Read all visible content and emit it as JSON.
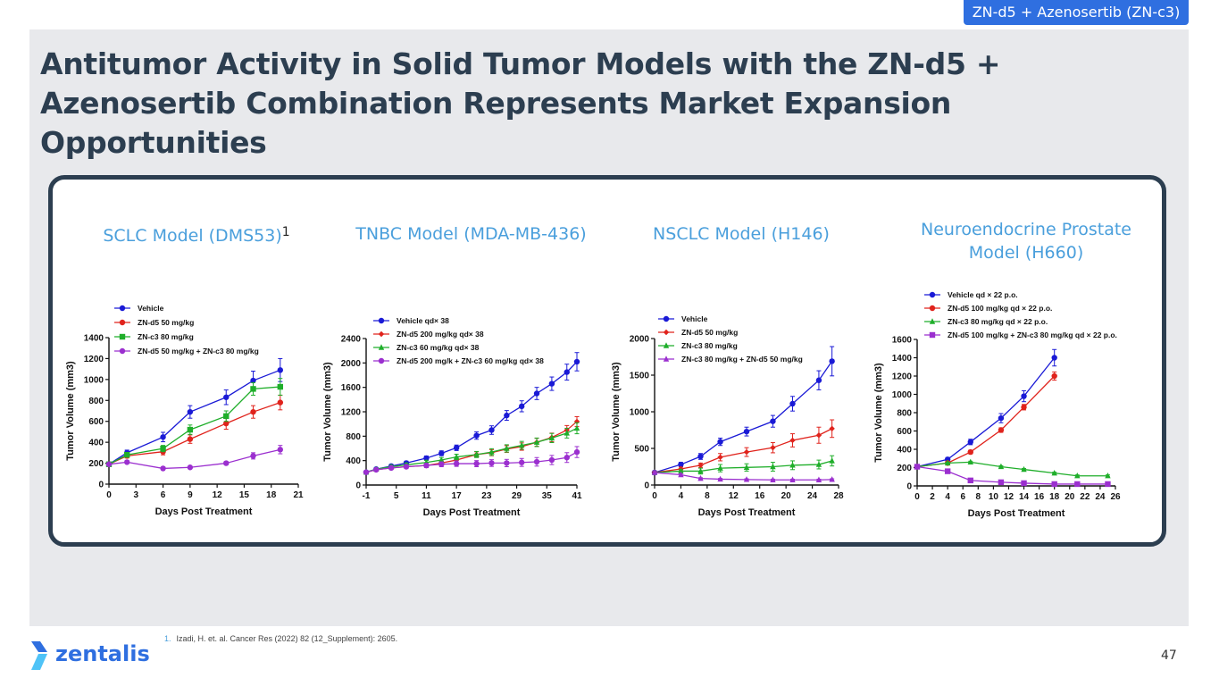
{
  "header_tag": "ZN-d5 + Azenosertib (ZN-c3)",
  "title": "Antitumor Activity in Solid Tumor Models with the ZN-d5 + Azenosertib Combination Represents Market Expansion Opportunities",
  "footnote": {
    "number": "1.",
    "text": "Izadi, H. et. al. Cancer Res (2022) 82 (12_Supplement): 2605."
  },
  "brand": "zentalis",
  "page_number": "47",
  "colors": {
    "blue": "#1a1ad6",
    "red": "#e0231c",
    "green": "#1fae2a",
    "purple": "#9b2fcf",
    "accent": "#4a9fdc",
    "dark": "#2c3e50"
  },
  "chart_data": [
    {
      "type": "line",
      "title": "SCLC Model (DMS53)",
      "title_superscript": "1",
      "xlabel": "Days Post Treatment",
      "ylabel": "Tumor Volume (mm3)",
      "xlim": [
        0,
        21
      ],
      "ylim": [
        0,
        1400
      ],
      "xticks": [
        0,
        3,
        6,
        9,
        12,
        15,
        18,
        21
      ],
      "yticks": [
        0,
        200,
        400,
        600,
        800,
        1000,
        1200,
        1400
      ],
      "legend_position": "top-left",
      "series": [
        {
          "name": "Vehicle",
          "color": "#1a1ad6",
          "marker": "circle",
          "x": [
            0,
            2,
            6,
            9,
            13,
            16,
            19
          ],
          "y": [
            190,
            300,
            450,
            690,
            830,
            990,
            1090
          ],
          "err": [
            20,
            25,
            45,
            60,
            70,
            90,
            110
          ]
        },
        {
          "name": "ZN-d5 50 mg/kg",
          "color": "#e0231c",
          "marker": "circle",
          "x": [
            0,
            2,
            6,
            9,
            13,
            16,
            19
          ],
          "y": [
            190,
            270,
            310,
            430,
            580,
            690,
            780
          ],
          "err": [
            15,
            20,
            30,
            40,
            55,
            60,
            70
          ]
        },
        {
          "name": "ZN-c3 80 mg/kg",
          "color": "#1fae2a",
          "marker": "square",
          "x": [
            0,
            2,
            6,
            9,
            13,
            16,
            19
          ],
          "y": [
            190,
            280,
            340,
            520,
            650,
            910,
            930
          ],
          "err": [
            15,
            20,
            30,
            45,
            50,
            60,
            80
          ]
        },
        {
          "name": "ZN-d5 50 mg/kg + ZN-c3 80 mg/kg",
          "color": "#9b2fcf",
          "marker": "circle",
          "x": [
            0,
            2,
            6,
            9,
            13,
            16,
            19
          ],
          "y": [
            190,
            210,
            150,
            160,
            200,
            270,
            330
          ],
          "err": [
            10,
            10,
            10,
            10,
            15,
            30,
            40
          ]
        }
      ]
    },
    {
      "type": "line",
      "title": "TNBC Model (MDA-MB-436)",
      "xlabel": "Days Post Treatment",
      "ylabel": "Tumor Volume (mm3)",
      "xlim": [
        -1,
        41
      ],
      "ylim": [
        0,
        2400
      ],
      "xticks": [
        -1,
        5,
        11,
        17,
        23,
        29,
        35,
        41
      ],
      "yticks": [
        0,
        400,
        800,
        1200,
        1600,
        2000,
        2400
      ],
      "legend_position": "top-left",
      "series": [
        {
          "name": "Vehicle qd× 38",
          "color": "#1a1ad6",
          "marker": "circle",
          "x": [
            -1,
            1,
            4,
            7,
            11,
            14,
            17,
            21,
            24,
            27,
            30,
            33,
            36,
            39,
            41
          ],
          "y": [
            210,
            260,
            310,
            360,
            440,
            520,
            610,
            810,
            900,
            1140,
            1290,
            1500,
            1660,
            1850,
            2020
          ],
          "err": [
            20,
            20,
            25,
            30,
            35,
            40,
            45,
            60,
            70,
            80,
            90,
            100,
            110,
            130,
            150
          ]
        },
        {
          "name": "ZN-d5 200 mg/kg qd× 38",
          "color": "#e0231c",
          "marker": "diamond",
          "x": [
            -1,
            1,
            4,
            7,
            11,
            14,
            17,
            21,
            24,
            27,
            30,
            33,
            36,
            39,
            41
          ],
          "y": [
            210,
            250,
            280,
            300,
            320,
            360,
            410,
            500,
            530,
            590,
            630,
            700,
            780,
            900,
            1040
          ],
          "err": [
            20,
            20,
            20,
            25,
            30,
            35,
            40,
            45,
            50,
            55,
            60,
            65,
            70,
            75,
            80
          ]
        },
        {
          "name": "ZN-c3 60 mg/kg qd× 38",
          "color": "#1fae2a",
          "marker": "triangle",
          "x": [
            -1,
            1,
            4,
            7,
            11,
            14,
            17,
            21,
            24,
            27,
            30,
            33,
            36,
            39,
            41
          ],
          "y": [
            210,
            260,
            300,
            330,
            370,
            410,
            460,
            500,
            540,
            600,
            650,
            700,
            770,
            850,
            930
          ],
          "err": [
            20,
            20,
            25,
            30,
            35,
            40,
            45,
            50,
            55,
            60,
            65,
            70,
            75,
            80,
            90
          ]
        },
        {
          "name": "ZN-d5 200 mg/k + ZN-c3 60 mg/kg  qd× 38",
          "color": "#9b2fcf",
          "marker": "circle",
          "x": [
            -1,
            1,
            4,
            7,
            11,
            14,
            17,
            21,
            24,
            27,
            30,
            33,
            36,
            39,
            41
          ],
          "y": [
            210,
            250,
            280,
            300,
            320,
            340,
            350,
            350,
            360,
            360,
            370,
            380,
            410,
            450,
            540
          ],
          "err": [
            20,
            20,
            25,
            30,
            35,
            40,
            45,
            50,
            55,
            60,
            65,
            70,
            75,
            80,
            90
          ]
        }
      ]
    },
    {
      "type": "line",
      "title": "NSCLC Model (H146)",
      "xlabel": "Days Post Treatment",
      "ylabel": "Tumor Volume (mm3)",
      "xlim": [
        0,
        28
      ],
      "ylim": [
        0,
        2000
      ],
      "xticks": [
        0,
        4,
        8,
        12,
        16,
        20,
        24,
        28
      ],
      "yticks": [
        0,
        500,
        1000,
        1500,
        2000
      ],
      "legend_position": "top-left",
      "series": [
        {
          "name": "Vehicle",
          "color": "#1a1ad6",
          "marker": "circle",
          "x": [
            0,
            4,
            7,
            10,
            14,
            18,
            21,
            25,
            27
          ],
          "y": [
            170,
            280,
            390,
            590,
            730,
            870,
            1110,
            1430,
            1690
          ],
          "err": [
            20,
            30,
            40,
            50,
            60,
            80,
            100,
            130,
            200
          ]
        },
        {
          "name": "ZN-d5 50 mg/kg",
          "color": "#e0231c",
          "marker": "diamond",
          "x": [
            0,
            4,
            7,
            10,
            14,
            18,
            21,
            25,
            27
          ],
          "y": [
            170,
            220,
            270,
            380,
            450,
            510,
            610,
            680,
            770
          ],
          "err": [
            20,
            25,
            30,
            50,
            60,
            70,
            90,
            110,
            120
          ]
        },
        {
          "name": "ZN-c3 80 mg/kg",
          "color": "#1fae2a",
          "marker": "triangle",
          "x": [
            0,
            4,
            7,
            10,
            14,
            18,
            21,
            25,
            27
          ],
          "y": [
            170,
            190,
            190,
            230,
            240,
            250,
            270,
            280,
            330
          ],
          "err": [
            15,
            20,
            40,
            50,
            50,
            60,
            60,
            60,
            70
          ]
        },
        {
          "name": "ZN-c3 80 mg/kg + ZN-d5 50 mg/kg",
          "color": "#9b2fcf",
          "marker": "triangle",
          "x": [
            0,
            4,
            7,
            10,
            14,
            18,
            21,
            25,
            27
          ],
          "y": [
            170,
            140,
            90,
            80,
            75,
            70,
            70,
            70,
            75
          ],
          "err": [
            15,
            15,
            10,
            10,
            10,
            10,
            10,
            10,
            10
          ]
        }
      ]
    },
    {
      "type": "line",
      "title": "Neuroendocrine Prostate Model (H660)",
      "xlabel": "Days Post Treatment",
      "ylabel": "Tumor Volume (mm3)",
      "xlim": [
        0,
        26
      ],
      "ylim": [
        0,
        1600
      ],
      "xticks": [
        0,
        2,
        4,
        6,
        8,
        10,
        12,
        14,
        16,
        18,
        20,
        22,
        24,
        26
      ],
      "yticks": [
        0,
        200,
        400,
        600,
        800,
        1000,
        1200,
        1400,
        1600
      ],
      "legend_position": "top-left",
      "series": [
        {
          "name": "Vehicle qd × 22 p.o.",
          "color": "#1a1ad6",
          "marker": "circle",
          "x": [
            0,
            4,
            7,
            11,
            14,
            18
          ],
          "y": [
            210,
            290,
            480,
            740,
            980,
            1400
          ],
          "err": [
            15,
            20,
            30,
            50,
            60,
            90
          ]
        },
        {
          "name": "ZN-d5 100 mg/kg qd × 22 p.o.",
          "color": "#e0231c",
          "marker": "circle",
          "x": [
            0,
            4,
            7,
            11,
            14,
            18
          ],
          "y": [
            210,
            250,
            370,
            610,
            860,
            1200
          ],
          "err": [
            15,
            15,
            20,
            25,
            30,
            45
          ]
        },
        {
          "name": "ZN-c3 80 mg/kg qd × 22 p.o.",
          "color": "#1fae2a",
          "marker": "triangle",
          "x": [
            0,
            4,
            7,
            11,
            14,
            18,
            21,
            25
          ],
          "y": [
            210,
            250,
            260,
            210,
            180,
            140,
            110,
            110
          ],
          "err": [
            10,
            10,
            10,
            10,
            10,
            10,
            10,
            10
          ]
        },
        {
          "name": "ZN-d5 100 mg/kg + ZN-c3 80 mg/kg qd × 22 p.o.",
          "color": "#9b2fcf",
          "marker": "square",
          "x": [
            0,
            4,
            7,
            11,
            14,
            18,
            21,
            25
          ],
          "y": [
            210,
            160,
            60,
            40,
            30,
            20,
            20,
            20
          ],
          "err": [
            10,
            10,
            10,
            5,
            5,
            5,
            5,
            5
          ]
        }
      ]
    }
  ]
}
